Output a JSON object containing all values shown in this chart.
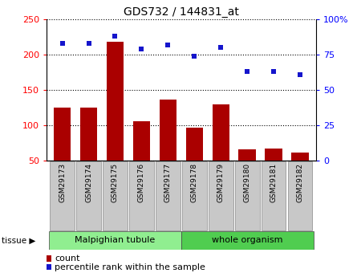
{
  "title": "GDS732 / 144831_at",
  "samples": [
    "GSM29173",
    "GSM29174",
    "GSM29175",
    "GSM29176",
    "GSM29177",
    "GSM29178",
    "GSM29179",
    "GSM29180",
    "GSM29181",
    "GSM29182"
  ],
  "counts": [
    125,
    125,
    218,
    106,
    137,
    97,
    130,
    66,
    67,
    62
  ],
  "percentiles": [
    83,
    83,
    88,
    79,
    82,
    74,
    80,
    63,
    63,
    61
  ],
  "ylim_left": [
    50,
    250
  ],
  "ylim_right": [
    0,
    100
  ],
  "yticks_left": [
    50,
    100,
    150,
    200,
    250
  ],
  "yticks_right": [
    0,
    25,
    50,
    75,
    100
  ],
  "ytick_labels_right": [
    "0",
    "25",
    "50",
    "75",
    "100%"
  ],
  "bar_color": "#AA0000",
  "dot_color": "#1515CC",
  "label_box_color": "#C8C8C8",
  "group1_color": "#90EE90",
  "group2_color": "#50CD50",
  "legend_bar_label": "count",
  "legend_dot_label": "percentile rank within the sample",
  "tissue_label": "tissue"
}
